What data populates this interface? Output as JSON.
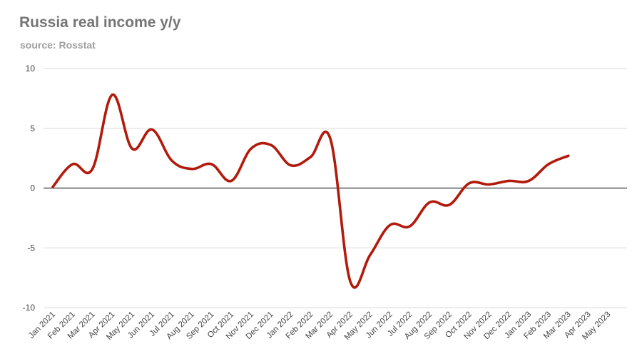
{
  "title": "Russia real income y/y",
  "subtitle": "source: Rosstat",
  "colors": {
    "line": "#b21a0b",
    "grid": "#d9d9d9",
    "zero_line": "#333333",
    "title": "#757575",
    "subtitle": "#9e9e9e",
    "tick_text": "#444444"
  },
  "chart_data": {
    "type": "line",
    "title": "Russia real income y/y",
    "subtitle": "source: Rosstat",
    "xlabel": "",
    "ylabel": "",
    "ylim": [
      -10,
      10
    ],
    "yticks": [
      10,
      5,
      0,
      -5,
      -10
    ],
    "grid": true,
    "legend": "none",
    "categories": [
      "Jan 2021",
      "Feb 2021",
      "Mar 2021",
      "Apr 2021",
      "May 2021",
      "Jun 2021",
      "Jul 2021",
      "Aug 2021",
      "Sep 2021",
      "Oct 2021",
      "Nov 2021",
      "Dec 2021",
      "Jan 2022",
      "Feb 2022",
      "Mar 2022",
      "Apr 2022",
      "May 2022",
      "Jun 2022",
      "Jul 2022",
      "Aug 2022",
      "Sep 2022",
      "Oct 2022",
      "Nov 2022",
      "Dec 2022",
      "Jan 2023",
      "Feb 2023",
      "Mar 2023",
      "Apr 2023",
      "May 2023"
    ],
    "series": [
      {
        "values": [
          0.1,
          2.0,
          1.6,
          7.8,
          3.3,
          4.9,
          2.3,
          1.6,
          2.0,
          0.6,
          3.3,
          3.6,
          1.9,
          2.6,
          4.1,
          -7.8,
          -5.6,
          -3.1,
          -3.2,
          -1.2,
          -1.4,
          0.4,
          0.3,
          0.6,
          0.6,
          2.0,
          2.7,
          null,
          null
        ]
      }
    ]
  }
}
